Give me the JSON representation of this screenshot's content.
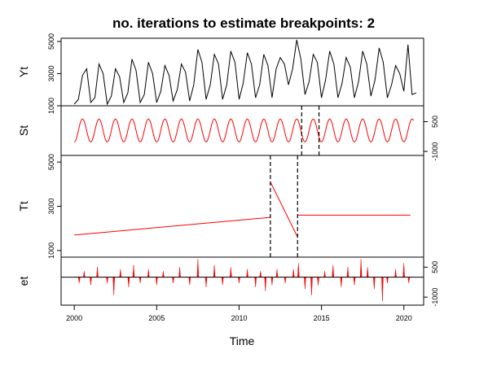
{
  "chart_data": {
    "type": "line",
    "title": "no. iterations to estimate breakpoints: 2",
    "xlabel": "Time",
    "xlim": [
      1999.2,
      2021.2
    ],
    "x_ticks": [
      2000,
      2005,
      2010,
      2015,
      2020
    ],
    "x_tick_labels": [
      "2000",
      "2005",
      "2010",
      "2015",
      "2020"
    ],
    "panels": [
      {
        "name": "Yt",
        "ylabel": "Yt",
        "ylim": [
          1000,
          5200
        ],
        "y_ticks_left": [
          1000,
          3000,
          5000
        ],
        "y_tick_labels_left": [
          "1000",
          "3000",
          "5000"
        ],
        "y_ticks_right": [],
        "y_tick_labels_right": [],
        "color": "#000000",
        "style": "line",
        "series": [
          {
            "x": 2000.0,
            "y": 1100
          },
          {
            "x": 2000.25,
            "y": 1400
          },
          {
            "x": 2000.5,
            "y": 2900
          },
          {
            "x": 2000.75,
            "y": 3300
          },
          {
            "x": 2001.0,
            "y": 1200
          },
          {
            "x": 2001.25,
            "y": 1500
          },
          {
            "x": 2001.5,
            "y": 3600
          },
          {
            "x": 2001.75,
            "y": 3000
          },
          {
            "x": 2002.0,
            "y": 1100
          },
          {
            "x": 2002.25,
            "y": 1600
          },
          {
            "x": 2002.5,
            "y": 3300
          },
          {
            "x": 2002.75,
            "y": 2800
          },
          {
            "x": 2003.0,
            "y": 1200
          },
          {
            "x": 2003.25,
            "y": 1800
          },
          {
            "x": 2003.5,
            "y": 3900
          },
          {
            "x": 2003.75,
            "y": 3200
          },
          {
            "x": 2004.0,
            "y": 1200
          },
          {
            "x": 2004.25,
            "y": 1700
          },
          {
            "x": 2004.5,
            "y": 3700
          },
          {
            "x": 2004.75,
            "y": 3000
          },
          {
            "x": 2005.0,
            "y": 1200
          },
          {
            "x": 2005.25,
            "y": 1900
          },
          {
            "x": 2005.5,
            "y": 3500
          },
          {
            "x": 2005.75,
            "y": 2900
          },
          {
            "x": 2006.0,
            "y": 1300
          },
          {
            "x": 2006.25,
            "y": 2000
          },
          {
            "x": 2006.5,
            "y": 3600
          },
          {
            "x": 2006.75,
            "y": 3100
          },
          {
            "x": 2007.0,
            "y": 1300
          },
          {
            "x": 2007.25,
            "y": 2300
          },
          {
            "x": 2007.5,
            "y": 4500
          },
          {
            "x": 2007.75,
            "y": 3700
          },
          {
            "x": 2008.0,
            "y": 1400
          },
          {
            "x": 2008.25,
            "y": 2300
          },
          {
            "x": 2008.5,
            "y": 4200
          },
          {
            "x": 2008.75,
            "y": 3600
          },
          {
            "x": 2009.0,
            "y": 1400
          },
          {
            "x": 2009.25,
            "y": 2300
          },
          {
            "x": 2009.5,
            "y": 4400
          },
          {
            "x": 2009.75,
            "y": 3700
          },
          {
            "x": 2010.0,
            "y": 1400
          },
          {
            "x": 2010.25,
            "y": 2400
          },
          {
            "x": 2010.5,
            "y": 4300
          },
          {
            "x": 2010.75,
            "y": 3600
          },
          {
            "x": 2011.0,
            "y": 1500
          },
          {
            "x": 2011.25,
            "y": 2300
          },
          {
            "x": 2011.5,
            "y": 4200
          },
          {
            "x": 2011.75,
            "y": 3500
          },
          {
            "x": 2012.0,
            "y": 1500
          },
          {
            "x": 2012.25,
            "y": 3300
          },
          {
            "x": 2012.5,
            "y": 4000
          },
          {
            "x": 2012.75,
            "y": 3600
          },
          {
            "x": 2013.0,
            "y": 2300
          },
          {
            "x": 2013.25,
            "y": 3300
          },
          {
            "x": 2013.5,
            "y": 5100
          },
          {
            "x": 2013.75,
            "y": 3900
          },
          {
            "x": 2014.0,
            "y": 1700
          },
          {
            "x": 2014.25,
            "y": 2500
          },
          {
            "x": 2014.5,
            "y": 4200
          },
          {
            "x": 2014.75,
            "y": 3700
          },
          {
            "x": 2015.0,
            "y": 1500
          },
          {
            "x": 2015.25,
            "y": 2600
          },
          {
            "x": 2015.5,
            "y": 4400
          },
          {
            "x": 2015.75,
            "y": 3600
          },
          {
            "x": 2016.0,
            "y": 1500
          },
          {
            "x": 2016.25,
            "y": 2400
          },
          {
            "x": 2016.5,
            "y": 4000
          },
          {
            "x": 2016.75,
            "y": 3400
          },
          {
            "x": 2017.0,
            "y": 1500
          },
          {
            "x": 2017.25,
            "y": 2500
          },
          {
            "x": 2017.5,
            "y": 4400
          },
          {
            "x": 2017.75,
            "y": 3600
          },
          {
            "x": 2018.0,
            "y": 1600
          },
          {
            "x": 2018.25,
            "y": 2600
          },
          {
            "x": 2018.5,
            "y": 4600
          },
          {
            "x": 2018.75,
            "y": 3700
          },
          {
            "x": 2019.0,
            "y": 1500
          },
          {
            "x": 2019.25,
            "y": 2300
          },
          {
            "x": 2019.5,
            "y": 3500
          },
          {
            "x": 2019.75,
            "y": 3000
          },
          {
            "x": 2020.0,
            "y": 1900
          },
          {
            "x": 2020.25,
            "y": 4800
          },
          {
            "x": 2020.5,
            "y": 1700
          },
          {
            "x": 2020.75,
            "y": 1800
          }
        ]
      },
      {
        "name": "St",
        "ylabel": "St",
        "ylim": [
          -1200,
          1300
        ],
        "y_ticks_left": [],
        "y_tick_labels_left": [],
        "y_ticks_right": [
          -1000,
          500
        ],
        "y_tick_labels_right": [
          "-1000",
          "500"
        ],
        "color": "#ff0000",
        "style": "seasonal",
        "season_amplitude": 1150,
        "breakpoints": [
          2013.8,
          2014.85
        ]
      },
      {
        "name": "Tt",
        "ylabel": "Tt",
        "ylim": [
          700,
          5300
        ],
        "y_ticks_left": [
          1000,
          3000,
          5000
        ],
        "y_tick_labels_left": [
          "1000",
          "3000",
          "5000"
        ],
        "y_ticks_right": [],
        "y_tick_labels_right": [],
        "color": "#ff0000",
        "style": "line",
        "breakpoints": [
          2011.9,
          2013.55
        ],
        "segments": [
          [
            {
              "x": 2000.0,
              "y": 1700
            },
            {
              "x": 2011.9,
              "y": 2500
            }
          ],
          [
            {
              "x": 2011.9,
              "y": 4100
            },
            {
              "x": 2013.55,
              "y": 1600
            }
          ],
          [
            {
              "x": 2013.55,
              "y": 2600
            },
            {
              "x": 2020.4,
              "y": 2600
            }
          ]
        ]
      },
      {
        "name": "et",
        "ylabel": "et",
        "ylim": [
          -1400,
          1000
        ],
        "y_ticks_left": [],
        "y_tick_labels_left": [],
        "y_ticks_right": [
          -1000,
          500
        ],
        "y_tick_labels_right": [
          "-1000",
          "500"
        ],
        "color": "#ff0000",
        "style": "residual",
        "spikes": [
          {
            "x": 2000.3,
            "y": -300
          },
          {
            "x": 2000.6,
            "y": 300
          },
          {
            "x": 2001.0,
            "y": -400
          },
          {
            "x": 2001.4,
            "y": 500
          },
          {
            "x": 2002.0,
            "y": -300
          },
          {
            "x": 2002.4,
            "y": -900
          },
          {
            "x": 2002.8,
            "y": 400
          },
          {
            "x": 2003.3,
            "y": -500
          },
          {
            "x": 2003.6,
            "y": 600
          },
          {
            "x": 2004.0,
            "y": -300
          },
          {
            "x": 2004.5,
            "y": 400
          },
          {
            "x": 2005.0,
            "y": -400
          },
          {
            "x": 2005.4,
            "y": 300
          },
          {
            "x": 2006.0,
            "y": -300
          },
          {
            "x": 2006.4,
            "y": 500
          },
          {
            "x": 2007.0,
            "y": -400
          },
          {
            "x": 2007.5,
            "y": 900
          },
          {
            "x": 2008.0,
            "y": -500
          },
          {
            "x": 2008.5,
            "y": 600
          },
          {
            "x": 2009.0,
            "y": -400
          },
          {
            "x": 2009.5,
            "y": 500
          },
          {
            "x": 2010.0,
            "y": -300
          },
          {
            "x": 2010.5,
            "y": 400
          },
          {
            "x": 2011.0,
            "y": -500
          },
          {
            "x": 2011.3,
            "y": 300
          },
          {
            "x": 2011.6,
            "y": -700
          },
          {
            "x": 2012.0,
            "y": -400
          },
          {
            "x": 2012.3,
            "y": 400
          },
          {
            "x": 2012.8,
            "y": -300
          },
          {
            "x": 2013.3,
            "y": 400
          },
          {
            "x": 2013.6,
            "y": 700
          },
          {
            "x": 2014.0,
            "y": -600
          },
          {
            "x": 2014.4,
            "y": -900
          },
          {
            "x": 2014.8,
            "y": -400
          },
          {
            "x": 2015.2,
            "y": 300
          },
          {
            "x": 2015.7,
            "y": 600
          },
          {
            "x": 2016.2,
            "y": -500
          },
          {
            "x": 2016.6,
            "y": 500
          },
          {
            "x": 2017.0,
            "y": -400
          },
          {
            "x": 2017.4,
            "y": 900
          },
          {
            "x": 2017.8,
            "y": 500
          },
          {
            "x": 2018.2,
            "y": -600
          },
          {
            "x": 2018.7,
            "y": -1200
          },
          {
            "x": 2019.0,
            "y": -300
          },
          {
            "x": 2019.5,
            "y": 400
          },
          {
            "x": 2020.0,
            "y": 700
          },
          {
            "x": 2020.3,
            "y": -300
          }
        ]
      }
    ]
  }
}
